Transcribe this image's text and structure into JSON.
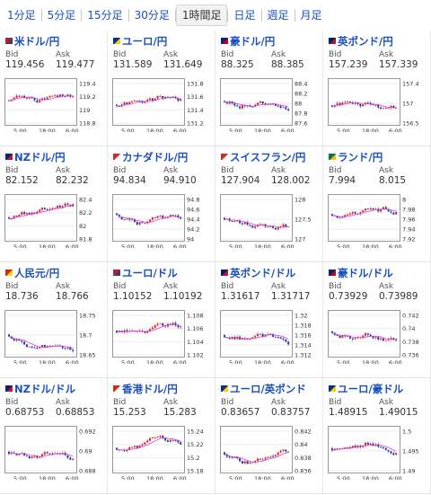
{
  "timeframe_tabs": [
    {
      "label": "1分足",
      "active": false
    },
    {
      "label": "5分足",
      "active": false
    },
    {
      "label": "15分足",
      "active": false
    },
    {
      "label": "30分足",
      "active": false
    },
    {
      "label": "1時間足",
      "active": true
    },
    {
      "label": "日足",
      "active": false
    },
    {
      "label": "週足",
      "active": false
    },
    {
      "label": "月足",
      "active": false
    }
  ],
  "bid_label": "Bid",
  "ask_label": "Ask",
  "colors": {
    "link": "#1a4fbf",
    "bull": "#e02020",
    "bear": "#1a3aa0",
    "ma": "#e040e0"
  },
  "pairs": [
    {
      "title": "米ドル/円",
      "flag": "us",
      "bid": "119.456",
      "ask": "119.477",
      "y_ticks": [
        "119.4",
        "119.2",
        "119",
        "118.8"
      ],
      "x_ticks": [
        "5:00",
        "18:00",
        "6:00"
      ]
    },
    {
      "title": "ユーロ/円",
      "flag": "eu",
      "bid": "131.589",
      "ask": "131.649",
      "y_ticks": [
        "131.8",
        "131.6",
        "131.4",
        "131.2"
      ],
      "x_ticks": [
        "5:00",
        "18:00",
        "6:00"
      ]
    },
    {
      "title": "豪ドル/円",
      "flag": "au",
      "bid": "88.325",
      "ask": "88.385",
      "y_ticks": [
        "88.4",
        "88.2",
        "88",
        "87.8",
        "87.6"
      ],
      "x_ticks": [
        "5:00",
        "18:00",
        "6:00"
      ]
    },
    {
      "title": "英ポンド/円",
      "flag": "gb",
      "bid": "157.239",
      "ask": "157.339",
      "y_ticks": [
        "157.4",
        "157",
        "156.5"
      ],
      "x_ticks": [
        "5:00",
        "18:00",
        "6:00"
      ]
    },
    {
      "title": "NZドル/円",
      "flag": "nz",
      "bid": "82.152",
      "ask": "82.232",
      "y_ticks": [
        "82.4",
        "82.2",
        "82",
        "81.8"
      ],
      "x_ticks": [
        "5:00",
        "18:00",
        "6:00"
      ]
    },
    {
      "title": "カナダドル/円",
      "flag": "ca",
      "bid": "94.834",
      "ask": "94.910",
      "y_ticks": [
        "94.8",
        "94.6",
        "94.4",
        "94.2",
        "94"
      ],
      "x_ticks": [
        "5:00",
        "18:00",
        "6:00"
      ]
    },
    {
      "title": "スイスフラン/円",
      "flag": "ch",
      "bid": "127.904",
      "ask": "128.002",
      "y_ticks": [
        "128",
        "127.5",
        "127"
      ],
      "x_ticks": [
        "5:00",
        "18:00",
        "6:00"
      ]
    },
    {
      "title": "ランド/円",
      "flag": "za",
      "bid": "7.994",
      "ask": "8.015",
      "y_ticks": [
        "8",
        "7.98",
        "7.96",
        "7.94",
        "7.92"
      ],
      "x_ticks": [
        "5:00",
        "18:00",
        "6:00"
      ]
    },
    {
      "title": "人民元/円",
      "flag": "cn",
      "bid": "18.736",
      "ask": "18.766",
      "y_ticks": [
        "18.75",
        "18.7",
        "18.65"
      ],
      "x_ticks": [
        "5:00",
        "18:00",
        "6:00"
      ]
    },
    {
      "title": "ユーロ/ドル",
      "flag": "us",
      "bid": "1.10152",
      "ask": "1.10192",
      "y_ticks": [
        "1.108",
        "1.106",
        "1.104",
        "1.102"
      ],
      "x_ticks": [
        "5:00",
        "18:00",
        "6:00"
      ]
    },
    {
      "title": "英ポンド/ドル",
      "flag": "gb",
      "bid": "1.31617",
      "ask": "1.31717",
      "y_ticks": [
        "1.32",
        "1.318",
        "1.316",
        "1.314",
        "1.312"
      ],
      "x_ticks": [
        "5:00",
        "18:00",
        "6:00"
      ]
    },
    {
      "title": "豪ドル/ドル",
      "flag": "au",
      "bid": "0.73929",
      "ask": "0.73989",
      "y_ticks": [
        "0.742",
        "0.74",
        "0.738",
        "0.736"
      ],
      "x_ticks": [
        "5:00",
        "18:00",
        "6:00"
      ]
    },
    {
      "title": "NZドル/ドル",
      "flag": "nz",
      "bid": "0.68753",
      "ask": "0.68853",
      "y_ticks": [
        "0.692",
        "0.69",
        "0.688"
      ],
      "x_ticks": [
        "5:00",
        "18:00",
        "6:00"
      ]
    },
    {
      "title": "香港ドル/円",
      "flag": "hk",
      "bid": "15.253",
      "ask": "15.283",
      "y_ticks": [
        "15.24",
        "15.22",
        "15.2",
        "15.18"
      ],
      "x_ticks": [
        "5:00",
        "18:00",
        "6:00"
      ]
    },
    {
      "title": "ユーロ/英ポンド",
      "flag": "eu",
      "bid": "0.83657",
      "ask": "0.83757",
      "y_ticks": [
        "0.842",
        "0.84",
        "0.838",
        "0.836"
      ],
      "x_ticks": [
        "5:00",
        "18:00",
        "6:00"
      ]
    },
    {
      "title": "ユーロ/豪ドル",
      "flag": "eu",
      "bid": "1.48915",
      "ask": "1.49015",
      "y_ticks": [
        "1.5",
        "1.495",
        "1.49"
      ],
      "x_ticks": [
        "5:00",
        "18:00",
        "6:00"
      ]
    }
  ]
}
